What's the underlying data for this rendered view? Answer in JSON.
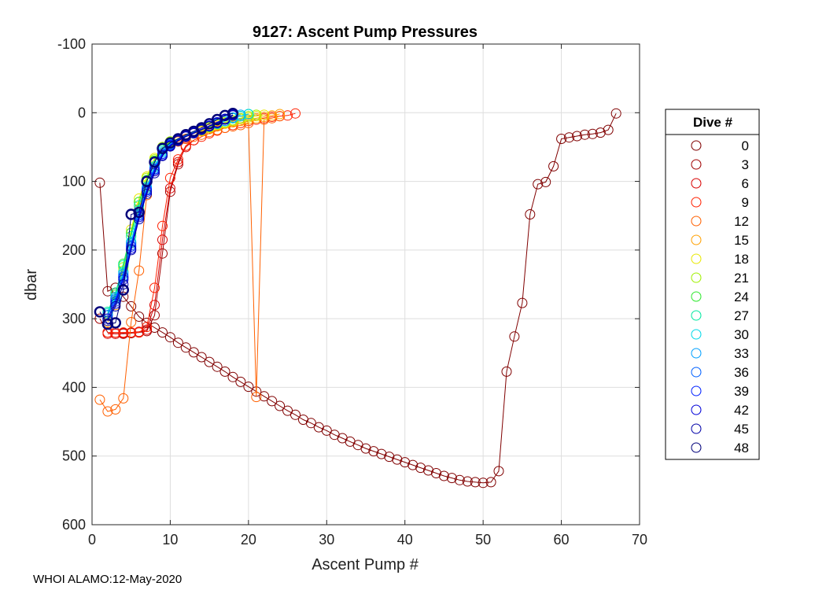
{
  "footer": "WHOI ALAMO:12-May-2020",
  "chart_data": {
    "type": "line",
    "title": "9127: Ascent Pump Pressures",
    "xlabel": "Ascent Pump #",
    "ylabel": "dbar",
    "xlim": [
      0,
      70
    ],
    "ylim": [
      -100,
      600
    ],
    "y_reversed": true,
    "grid": true,
    "xticks": [
      0,
      10,
      20,
      30,
      40,
      50,
      60,
      70
    ],
    "yticks": [
      -100,
      0,
      100,
      200,
      300,
      400,
      500,
      600
    ],
    "legend": {
      "title": "Dive #",
      "placement": "outside-right"
    },
    "series": [
      {
        "name": "0",
        "color": "#800000",
        "x": [
          1,
          2,
          3,
          4,
          5,
          6,
          7,
          8,
          9,
          10,
          11,
          12,
          13,
          14,
          15,
          16,
          17,
          18,
          19,
          20,
          21,
          22,
          23,
          24,
          25,
          26,
          27,
          28,
          29,
          30,
          31,
          32,
          33,
          34,
          35,
          36,
          37,
          38,
          39,
          40,
          41,
          42,
          43,
          44,
          45,
          46,
          47,
          48,
          49,
          50,
          51,
          52,
          53,
          54,
          55,
          56,
          57,
          58,
          59,
          60,
          61,
          62,
          63,
          64,
          65,
          66,
          67
        ],
        "y": [
          102,
          260,
          255,
          268,
          282,
          297,
          306,
          313,
          320,
          327,
          335,
          342,
          349,
          356,
          363,
          370,
          377,
          385,
          392,
          399,
          406,
          413,
          420,
          427,
          434,
          440,
          447,
          452,
          458,
          463,
          469,
          474,
          479,
          484,
          489,
          493,
          497,
          501,
          505,
          509,
          513,
          517,
          521,
          525,
          529,
          532,
          535,
          537,
          538,
          539,
          538,
          522,
          377,
          326,
          277,
          148,
          104,
          101,
          78,
          38,
          36,
          34,
          32,
          31,
          29,
          25,
          1
        ]
      },
      {
        "name": "3",
        "color": "#a00000",
        "x": [
          1,
          2,
          3,
          4,
          5,
          6,
          7,
          8,
          9,
          10,
          11,
          12,
          13
        ],
        "y": [
          300,
          320,
          322,
          322,
          321,
          320,
          318,
          295,
          205,
          115,
          75,
          48,
          40
        ]
      },
      {
        "name": "6",
        "color": "#d80000",
        "x": [
          2,
          3,
          4,
          5,
          6,
          7,
          8,
          9,
          10,
          11,
          12,
          13
        ],
        "y": [
          322,
          322,
          321,
          320,
          319,
          316,
          280,
          185,
          110,
          72,
          50,
          40
        ]
      },
      {
        "name": "9",
        "color": "#ff2000",
        "x": [
          2,
          3,
          4,
          5,
          6,
          7,
          8,
          9,
          10,
          11,
          12,
          13,
          14,
          15,
          16,
          17,
          18,
          19,
          20,
          21,
          22,
          23,
          24,
          25,
          26
        ],
        "y": [
          320,
          320,
          320,
          320,
          320,
          312,
          255,
          165,
          95,
          68,
          48,
          40,
          35,
          30,
          26,
          22,
          18,
          15,
          12,
          10,
          8,
          6,
          5,
          4,
          1
        ]
      },
      {
        "name": "12",
        "color": "#ff6000",
        "x": [
          1,
          2,
          3,
          4,
          5,
          6,
          7,
          8,
          9,
          10,
          11,
          12,
          13,
          14,
          15,
          16,
          17,
          18,
          19,
          20,
          21,
          22,
          23,
          24
        ],
        "y": [
          418,
          435,
          432,
          416,
          305,
          230,
          120,
          85,
          60,
          48,
          42,
          38,
          35,
          32,
          28,
          25,
          22,
          20,
          18,
          15,
          414,
          10,
          8,
          5
        ]
      },
      {
        "name": "15",
        "color": "#ffa000",
        "x": [
          2,
          3,
          4,
          5,
          6,
          7,
          8,
          9,
          10,
          11,
          12,
          13,
          14,
          15,
          16,
          17,
          18,
          19,
          20,
          21,
          22,
          23,
          24
        ],
        "y": [
          305,
          280,
          240,
          190,
          140,
          100,
          70,
          52,
          42,
          38,
          34,
          30,
          27,
          24,
          20,
          16,
          14,
          12,
          10,
          8,
          6,
          4,
          2
        ]
      },
      {
        "name": "18",
        "color": "#e8e800",
        "x": [
          2,
          3,
          4,
          5,
          6,
          7,
          8,
          9,
          10,
          11,
          12,
          13,
          14,
          15,
          16,
          17,
          18,
          19,
          20,
          21,
          22
        ],
        "y": [
          300,
          275,
          230,
          170,
          125,
          93,
          66,
          50,
          42,
          38,
          34,
          30,
          26,
          22,
          18,
          15,
          12,
          9,
          7,
          5,
          3
        ]
      },
      {
        "name": "21",
        "color": "#a0f000",
        "x": [
          2,
          3,
          4,
          5,
          6,
          7,
          8,
          9,
          10,
          11,
          12,
          13,
          14,
          15,
          16,
          17,
          18,
          19,
          20,
          21
        ],
        "y": [
          295,
          270,
          225,
          175,
          130,
          95,
          68,
          50,
          42,
          38,
          33,
          29,
          25,
          21,
          17,
          14,
          11,
          8,
          5,
          3
        ]
      },
      {
        "name": "24",
        "color": "#30e830",
        "x": [
          2,
          3,
          4,
          5,
          6,
          7,
          8,
          9,
          10,
          11,
          12,
          13,
          14,
          15,
          16,
          17,
          18,
          19,
          20
        ],
        "y": [
          292,
          265,
          220,
          175,
          130,
          98,
          70,
          52,
          43,
          38,
          33,
          29,
          25,
          20,
          16,
          12,
          8,
          5,
          2
        ]
      },
      {
        "name": "27",
        "color": "#00e8a0",
        "x": [
          2,
          3,
          4,
          5,
          6,
          7,
          8,
          9,
          10,
          11,
          12,
          13,
          14,
          15,
          16,
          17,
          18,
          19,
          20
        ],
        "y": [
          290,
          262,
          222,
          180,
          135,
          100,
          72,
          54,
          44,
          38,
          33,
          28,
          24,
          20,
          16,
          12,
          8,
          5,
          2
        ]
      },
      {
        "name": "30",
        "color": "#00d8e8",
        "x": [
          2,
          3,
          4,
          5,
          6,
          7,
          8,
          9,
          10,
          11,
          12,
          13,
          14,
          15,
          16,
          17,
          18,
          19,
          20
        ],
        "y": [
          292,
          268,
          232,
          188,
          142,
          108,
          78,
          56,
          45,
          39,
          34,
          29,
          24,
          20,
          16,
          12,
          8,
          5,
          2
        ]
      },
      {
        "name": "33",
        "color": "#00a0ff",
        "x": [
          2,
          3,
          4,
          5,
          6,
          7,
          8,
          9,
          10,
          11,
          12,
          13,
          14,
          15,
          16,
          17,
          18,
          19
        ],
        "y": [
          295,
          270,
          235,
          190,
          145,
          110,
          80,
          58,
          46,
          39,
          34,
          29,
          24,
          20,
          16,
          12,
          7,
          3
        ]
      },
      {
        "name": "36",
        "color": "#0060ff",
        "x": [
          2,
          3,
          4,
          5,
          6,
          7,
          8,
          9,
          10,
          11,
          12,
          13,
          14,
          15,
          16,
          17,
          18
        ],
        "y": [
          295,
          272,
          238,
          193,
          148,
          112,
          82,
          60,
          47,
          40,
          34,
          29,
          24,
          19,
          14,
          9,
          4
        ]
      },
      {
        "name": "39",
        "color": "#0020ff",
        "x": [
          2,
          3,
          4,
          5,
          6,
          7,
          8,
          9,
          10,
          11,
          12,
          13,
          14,
          15,
          16,
          17,
          18
        ],
        "y": [
          300,
          275,
          240,
          195,
          150,
          113,
          83,
          60,
          47,
          40,
          34,
          29,
          24,
          19,
          14,
          9,
          4
        ]
      },
      {
        "name": "42",
        "color": "#0000d8",
        "x": [
          2,
          3,
          4,
          5,
          6,
          7,
          8,
          9,
          10,
          11,
          12,
          13,
          14,
          15,
          16,
          17,
          18
        ],
        "y": [
          300,
          278,
          243,
          198,
          152,
          115,
          85,
          62,
          48,
          40,
          34,
          29,
          24,
          19,
          14,
          9,
          3
        ]
      },
      {
        "name": "45",
        "color": "#0000a8",
        "x": [
          2,
          3,
          4,
          5,
          6,
          7,
          8,
          9,
          10,
          11,
          12,
          13,
          14,
          15,
          16,
          17,
          18
        ],
        "y": [
          303,
          282,
          250,
          200,
          155,
          118,
          88,
          63,
          49,
          41,
          35,
          30,
          25,
          20,
          15,
          10,
          4
        ]
      },
      {
        "name": "48",
        "color": "#00007a",
        "x": [
          1,
          2,
          3,
          4,
          5,
          6,
          7,
          8,
          9,
          10,
          11,
          12,
          13,
          14,
          15,
          16,
          17,
          18
        ],
        "y": [
          290,
          308,
          306,
          258,
          148,
          145,
          100,
          72,
          52,
          44,
          38,
          32,
          27,
          22,
          16,
          10,
          4,
          1
        ]
      }
    ]
  }
}
